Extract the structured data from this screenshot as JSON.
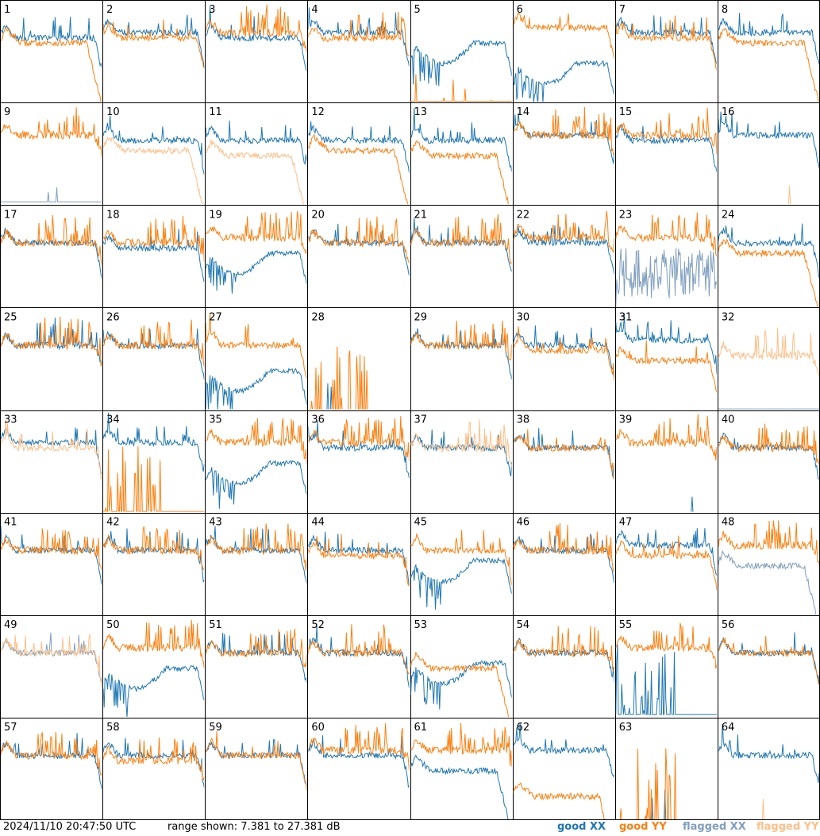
{
  "footer": {
    "timestamp": "2024/11/10 20:47:50 UTC",
    "range_text": "range shown: 7.381 to 27.381 dB"
  },
  "colors": {
    "good_xx": "#1f77b4",
    "good_yy": "#ff7f0e",
    "flagged_xx": "#7f9fbf",
    "flagged_yy": "#ffbf87"
  },
  "chart_data": {
    "type": "line",
    "title": "",
    "xlabel": "",
    "ylabel": "",
    "ylim": [
      7.381,
      27.381
    ],
    "grid": false,
    "layout": "8x8 small multiples",
    "legend": {
      "placement": "bottom-right",
      "entries": [
        {
          "label": "good XX",
          "color_key": "good_xx"
        },
        {
          "label": "good YY",
          "color_key": "good_yy"
        },
        {
          "label": "flagged XX",
          "color_key": "flagged_xx"
        },
        {
          "label": "flagged YY",
          "color_key": "flagged_yy"
        }
      ]
    },
    "tiles": [
      {
        "label": "1",
        "xx": {
          "status": "good",
          "shape": "flat",
          "level": 20
        },
        "yy": {
          "status": "good",
          "shape": "droop",
          "level": 19
        }
      },
      {
        "label": "2",
        "xx": {
          "status": "good",
          "shape": "flat",
          "level": 21
        },
        "yy": {
          "status": "good",
          "shape": "flat",
          "level": 20
        }
      },
      {
        "label": "3",
        "xx": {
          "status": "good",
          "shape": "flat",
          "level": 20
        },
        "yy": {
          "status": "good",
          "shape": "spiky",
          "level": 21
        }
      },
      {
        "label": "4",
        "xx": {
          "status": "good",
          "shape": "flat",
          "level": 21
        },
        "yy": {
          "status": "good",
          "shape": "spiky",
          "level": 20
        }
      },
      {
        "label": "5",
        "xx": {
          "status": "good",
          "shape": "bowl",
          "level": 19
        },
        "yy": {
          "status": "good",
          "shape": "dead",
          "level": 7.6
        }
      },
      {
        "label": "6",
        "xx": {
          "status": "good",
          "shape": "bowl",
          "level": 15
        },
        "yy": {
          "status": "good",
          "shape": "flat",
          "level": 22
        }
      },
      {
        "label": "7",
        "xx": {
          "status": "good",
          "shape": "flat",
          "level": 21
        },
        "yy": {
          "status": "good",
          "shape": "flat",
          "level": 20
        }
      },
      {
        "label": "8",
        "xx": {
          "status": "good",
          "shape": "flat",
          "level": 21
        },
        "yy": {
          "status": "good",
          "shape": "droop",
          "level": 19
        }
      },
      {
        "label": "9",
        "xx": {
          "status": "flagged",
          "shape": "dead",
          "level": 8
        },
        "yy": {
          "status": "good",
          "shape": "spiky",
          "level": 21
        }
      },
      {
        "label": "10",
        "xx": {
          "status": "good",
          "shape": "flat",
          "level": 20
        },
        "yy": {
          "status": "flagged",
          "shape": "droop",
          "level": 18
        }
      },
      {
        "label": "11",
        "xx": {
          "status": "good",
          "shape": "flat",
          "level": 20
        },
        "yy": {
          "status": "flagged",
          "shape": "droop",
          "level": 17
        }
      },
      {
        "label": "12",
        "xx": {
          "status": "good",
          "shape": "flat",
          "level": 20
        },
        "yy": {
          "status": "good",
          "shape": "droop",
          "level": 18
        }
      },
      {
        "label": "13",
        "xx": {
          "status": "good",
          "shape": "flat",
          "level": 20
        },
        "yy": {
          "status": "good",
          "shape": "droop",
          "level": 17
        }
      },
      {
        "label": "14",
        "xx": {
          "status": "good",
          "shape": "flat",
          "level": 21
        },
        "yy": {
          "status": "good",
          "shape": "spiky",
          "level": 21
        }
      },
      {
        "label": "15",
        "xx": {
          "status": "good",
          "shape": "flat",
          "level": 20
        },
        "yy": {
          "status": "good",
          "shape": "spiky",
          "level": 21
        }
      },
      {
        "label": "16",
        "xx": {
          "status": "good",
          "shape": "flat",
          "level": 21
        },
        "yy": {
          "status": "flagged",
          "shape": "dead",
          "level": 7.4
        }
      },
      {
        "label": "17",
        "xx": {
          "status": "good",
          "shape": "flat",
          "level": 20
        },
        "yy": {
          "status": "good",
          "shape": "spiky",
          "level": 20
        }
      },
      {
        "label": "18",
        "xx": {
          "status": "good",
          "shape": "flat",
          "level": 19
        },
        "yy": {
          "status": "good",
          "shape": "spiky",
          "level": 20
        }
      },
      {
        "label": "19",
        "xx": {
          "status": "good",
          "shape": "bowl",
          "level": 18
        },
        "yy": {
          "status": "good",
          "shape": "spiky",
          "level": 21
        }
      },
      {
        "label": "20",
        "xx": {
          "status": "good",
          "shape": "flat",
          "level": 20
        },
        "yy": {
          "status": "good",
          "shape": "spiky",
          "level": 20
        }
      },
      {
        "label": "21",
        "xx": {
          "status": "good",
          "shape": "flat",
          "level": 20
        },
        "yy": {
          "status": "good",
          "shape": "spiky",
          "level": 20
        }
      },
      {
        "label": "22",
        "xx": {
          "status": "good",
          "shape": "flat",
          "level": 20
        },
        "yy": {
          "status": "good",
          "shape": "spiky",
          "level": 21
        }
      },
      {
        "label": "23",
        "xx": {
          "status": "flagged",
          "shape": "noise",
          "level": 14
        },
        "yy": {
          "status": "good",
          "shape": "spiky",
          "level": 21
        }
      },
      {
        "label": "24",
        "xx": {
          "status": "good",
          "shape": "flat",
          "level": 20
        },
        "yy": {
          "status": "good",
          "shape": "droop",
          "level": 18
        }
      },
      {
        "label": "25",
        "xx": {
          "status": "good",
          "shape": "spiky",
          "level": 20
        },
        "yy": {
          "status": "good",
          "shape": "spiky",
          "level": 20
        }
      },
      {
        "label": "26",
        "xx": {
          "status": "good",
          "shape": "flat",
          "level": 20
        },
        "yy": {
          "status": "good",
          "shape": "spiky",
          "level": 20
        }
      },
      {
        "label": "27",
        "xx": {
          "status": "good",
          "shape": "bowl",
          "level": 15
        },
        "yy": {
          "status": "good",
          "shape": "flat",
          "level": 20
        }
      },
      {
        "label": "28",
        "xx": {
          "status": "good",
          "shape": "dead",
          "level": 7.4
        },
        "yy": {
          "status": "good",
          "shape": "burst",
          "level": 7.4
        }
      },
      {
        "label": "29",
        "xx": {
          "status": "good",
          "shape": "flat",
          "level": 20
        },
        "yy": {
          "status": "good",
          "shape": "spiky",
          "level": 20
        }
      },
      {
        "label": "30",
        "xx": {
          "status": "good",
          "shape": "flat",
          "level": 20
        },
        "yy": {
          "status": "good",
          "shape": "flat",
          "level": 19
        }
      },
      {
        "label": "31",
        "xx": {
          "status": "good",
          "shape": "flat",
          "level": 21
        },
        "yy": {
          "status": "good",
          "shape": "flat",
          "level": 17
        }
      },
      {
        "label": "32",
        "xx": {
          "status": "flagged",
          "shape": "dead",
          "level": 7.6
        },
        "yy": {
          "status": "flagged",
          "shape": "spiky",
          "level": 18
        }
      },
      {
        "label": "33",
        "xx": {
          "status": "good",
          "shape": "flat",
          "level": 21
        },
        "yy": {
          "status": "flagged",
          "shape": "flat",
          "level": 20
        }
      },
      {
        "label": "34",
        "xx": {
          "status": "good",
          "shape": "flat",
          "level": 21
        },
        "yy": {
          "status": "good",
          "shape": "burst",
          "level": 7.6
        }
      },
      {
        "label": "35",
        "xx": {
          "status": "good",
          "shape": "bowl",
          "level": 17
        },
        "yy": {
          "status": "good",
          "shape": "spiky",
          "level": 21
        }
      },
      {
        "label": "36",
        "xx": {
          "status": "good",
          "shape": "flat",
          "level": 20
        },
        "yy": {
          "status": "good",
          "shape": "spiky",
          "level": 21
        }
      },
      {
        "label": "37",
        "xx": {
          "status": "good",
          "shape": "flat",
          "level": 20
        },
        "yy": {
          "status": "flagged",
          "shape": "spiky",
          "level": 20
        }
      },
      {
        "label": "38",
        "xx": {
          "status": "good",
          "shape": "flat",
          "level": 20
        },
        "yy": {
          "status": "good",
          "shape": "flat",
          "level": 20
        }
      },
      {
        "label": "39",
        "xx": {
          "status": "good",
          "shape": "dead",
          "level": 7.4
        },
        "yy": {
          "status": "good",
          "shape": "spiky",
          "level": 21
        }
      },
      {
        "label": "40",
        "xx": {
          "status": "good",
          "shape": "flat",
          "level": 20
        },
        "yy": {
          "status": "good",
          "shape": "spiky",
          "level": 20
        }
      },
      {
        "label": "41",
        "xx": {
          "status": "good",
          "shape": "flat",
          "level": 20
        },
        "yy": {
          "status": "good",
          "shape": "spiky",
          "level": 20
        }
      },
      {
        "label": "42",
        "xx": {
          "status": "good",
          "shape": "flat",
          "level": 20
        },
        "yy": {
          "status": "good",
          "shape": "spiky",
          "level": 20
        }
      },
      {
        "label": "43",
        "xx": {
          "status": "good",
          "shape": "flat",
          "level": 20
        },
        "yy": {
          "status": "good",
          "shape": "spiky",
          "level": 20
        }
      },
      {
        "label": "44",
        "xx": {
          "status": "good",
          "shape": "flat",
          "level": 20
        },
        "yy": {
          "status": "good",
          "shape": "flat",
          "level": 19
        }
      },
      {
        "label": "45",
        "xx": {
          "status": "good",
          "shape": "bowl",
          "level": 18
        },
        "yy": {
          "status": "good",
          "shape": "flat",
          "level": 20
        }
      },
      {
        "label": "46",
        "xx": {
          "status": "good",
          "shape": "flat",
          "level": 20
        },
        "yy": {
          "status": "good",
          "shape": "spiky",
          "level": 20
        }
      },
      {
        "label": "47",
        "xx": {
          "status": "good",
          "shape": "flat",
          "level": 21
        },
        "yy": {
          "status": "good",
          "shape": "flat",
          "level": 19
        }
      },
      {
        "label": "48",
        "xx": {
          "status": "flagged",
          "shape": "droop",
          "level": 17
        },
        "yy": {
          "status": "good",
          "shape": "spiky",
          "level": 21
        }
      },
      {
        "label": "49",
        "xx": {
          "status": "flagged",
          "shape": "flat",
          "level": 20
        },
        "yy": {
          "status": "flagged",
          "shape": "flat",
          "level": 20
        }
      },
      {
        "label": "50",
        "xx": {
          "status": "good",
          "shape": "bowl",
          "level": 17
        },
        "yy": {
          "status": "good",
          "shape": "spiky",
          "level": 21
        }
      },
      {
        "label": "51",
        "xx": {
          "status": "good",
          "shape": "flat",
          "level": 20
        },
        "yy": {
          "status": "good",
          "shape": "spiky",
          "level": 20
        }
      },
      {
        "label": "52",
        "xx": {
          "status": "good",
          "shape": "flat",
          "level": 20
        },
        "yy": {
          "status": "good",
          "shape": "spiky",
          "level": 20
        }
      },
      {
        "label": "53",
        "xx": {
          "status": "good",
          "shape": "bowl",
          "level": 18
        },
        "yy": {
          "status": "good",
          "shape": "droop",
          "level": 17
        }
      },
      {
        "label": "54",
        "xx": {
          "status": "good",
          "shape": "flat",
          "level": 20
        },
        "yy": {
          "status": "good",
          "shape": "spiky",
          "level": 20
        }
      },
      {
        "label": "55",
        "xx": {
          "status": "good",
          "shape": "burst",
          "level": 8
        },
        "yy": {
          "status": "good",
          "shape": "spiky",
          "level": 21
        }
      },
      {
        "label": "56",
        "xx": {
          "status": "good",
          "shape": "flat",
          "level": 20
        },
        "yy": {
          "status": "good",
          "shape": "flat",
          "level": 20
        }
      },
      {
        "label": "57",
        "xx": {
          "status": "good",
          "shape": "flat",
          "level": 20
        },
        "yy": {
          "status": "good",
          "shape": "spiky",
          "level": 20
        }
      },
      {
        "label": "58",
        "xx": {
          "status": "good",
          "shape": "flat",
          "level": 20
        },
        "yy": {
          "status": "good",
          "shape": "spiky",
          "level": 19
        }
      },
      {
        "label": "59",
        "xx": {
          "status": "good",
          "shape": "flat",
          "level": 20
        },
        "yy": {
          "status": "good",
          "shape": "flat",
          "level": 20
        }
      },
      {
        "label": "60",
        "xx": {
          "status": "good",
          "shape": "flat",
          "level": 20
        },
        "yy": {
          "status": "good",
          "shape": "spiky",
          "level": 21
        }
      },
      {
        "label": "61",
        "xx": {
          "status": "good",
          "shape": "droop",
          "level": 17
        },
        "yy": {
          "status": "good",
          "shape": "spiky",
          "level": 21
        }
      },
      {
        "label": "62",
        "xx": {
          "status": "good",
          "shape": "flat",
          "level": 21
        },
        "yy": {
          "status": "good",
          "shape": "droop",
          "level": 12
        }
      },
      {
        "label": "63",
        "xx": {
          "status": "good",
          "shape": "dead",
          "level": 7.4
        },
        "yy": {
          "status": "good",
          "shape": "burst",
          "level": 7.4
        }
      },
      {
        "label": "64",
        "xx": {
          "status": "good",
          "shape": "flat",
          "level": 20
        },
        "yy": {
          "status": "flagged",
          "shape": "dead",
          "level": 7.4
        }
      }
    ]
  }
}
